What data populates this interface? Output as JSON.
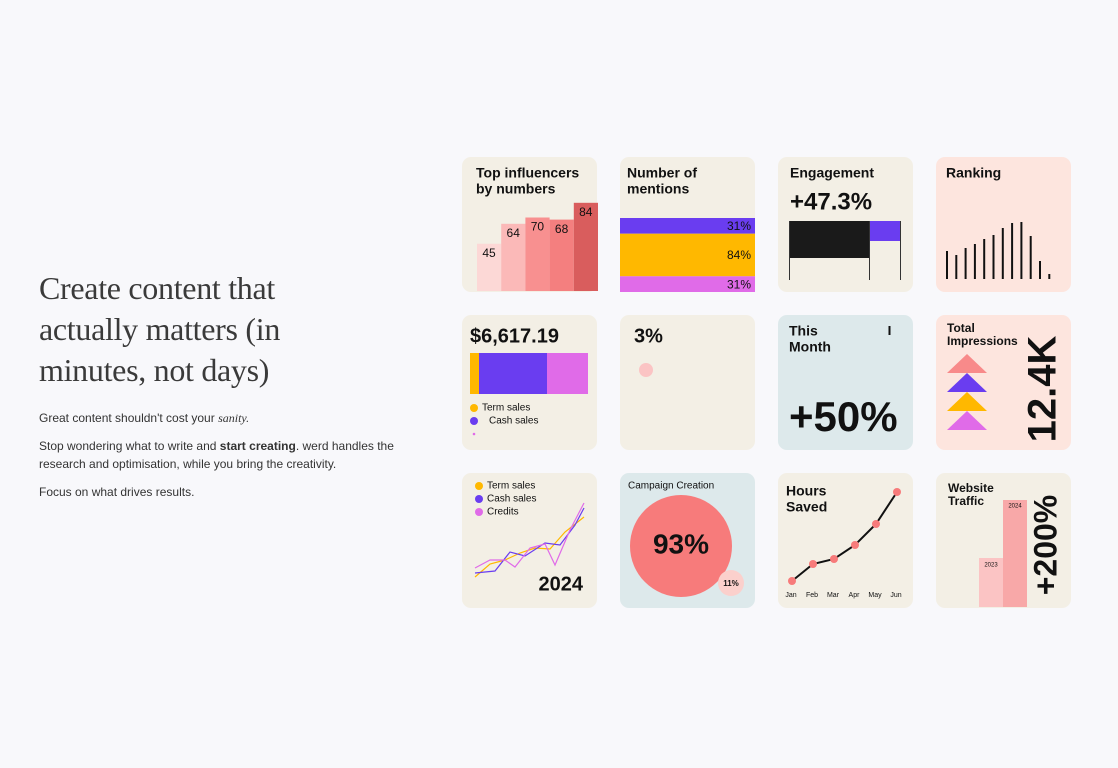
{
  "hero": {
    "title": "Create content that actually matters (in minutes, not days)",
    "tagline_prefix": "Great content shouldn't cost your",
    "tagline_emphasis": "sanity.",
    "body_prefix": "Stop wondering what to write and",
    "body_emphasis": "start creating",
    "body_suffix": ". werd handles the research and optimisation, while you bring the creativity.",
    "closing": "Focus on what drives results."
  },
  "cards": [
    {
      "title_lines": [
        "Top influencers",
        "by numbers"
      ],
      "values": [
        45,
        64,
        70,
        68,
        84
      ]
    },
    {
      "title_lines": [
        "Number of",
        "mentions"
      ],
      "values": [
        31,
        84,
        31
      ],
      "value_labels": [
        "31%",
        "84%",
        "31%"
      ]
    },
    {
      "title": "Engagement",
      "value": "+47.3%"
    },
    {
      "title": "Ranking"
    },
    {
      "value": "$6,617.19",
      "legend": [
        "Term sales",
        "Cash sales"
      ]
    },
    {
      "value": "3%"
    },
    {
      "title_lines": [
        "This",
        "Month"
      ],
      "value": "+50%"
    },
    {
      "title_lines": [
        "Total",
        "Impressions"
      ],
      "value": "12.4K"
    },
    {
      "legend": [
        "Term sales",
        "Cash sales",
        "Credits"
      ],
      "year": "2024"
    },
    {
      "title": "Campaign Creation",
      "value": "93%",
      "secondary": "11%"
    },
    {
      "title_lines": [
        "Hours",
        "Saved"
      ],
      "months": [
        "Jan",
        "Feb",
        "Mar",
        "Apr",
        "May",
        "Jun"
      ]
    },
    {
      "title_lines": [
        "Website",
        "Traffic"
      ],
      "bar_labels": [
        "2023",
        "2024"
      ],
      "value": "+200%"
    }
  ]
}
